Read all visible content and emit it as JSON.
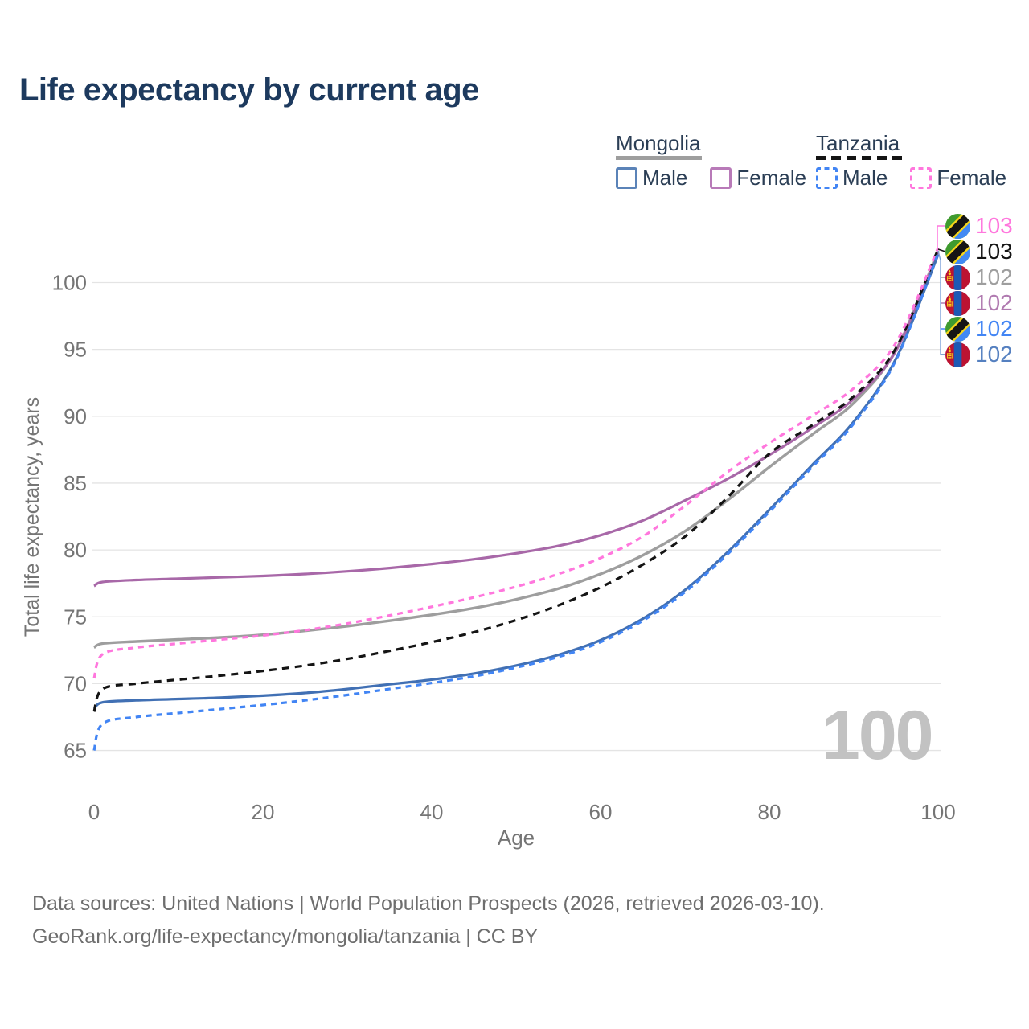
{
  "title": "Life expectancy by current age",
  "colors": {
    "title": "#1d3a5e",
    "axis": "#757575",
    "grid": "#e4e4e4",
    "legend_text": "#2b3e55",
    "watermark": "#c2c2c2",
    "leader_bracket": "#7ba0d8"
  },
  "legend": {
    "groups": [
      {
        "label": "Mongolia",
        "underline": "solid",
        "underline_color": "#9e9e9e",
        "items": [
          {
            "label": "Male",
            "color": "#5b83b8",
            "dashed": false
          },
          {
            "label": "Female",
            "color": "#b87ab8",
            "dashed": false
          }
        ]
      },
      {
        "label": "Tanzania",
        "underline": "dashed",
        "underline_color": "#141414",
        "items": [
          {
            "label": "Male",
            "color": "#4285f4",
            "dashed": true
          },
          {
            "label": "Female",
            "color": "#ff77dd",
            "dashed": true
          }
        ]
      }
    ]
  },
  "chart_data": {
    "type": "line",
    "title": "Life expectancy by current age",
    "xlabel": "Age",
    "ylabel": "Total life expectancy, years",
    "xlim": [
      0,
      100
    ],
    "ylim": [
      63.5,
      104
    ],
    "xticks": [
      0,
      20,
      40,
      60,
      80,
      100
    ],
    "yticks": [
      65,
      70,
      75,
      80,
      85,
      90,
      95,
      100
    ],
    "grid": "horizontal",
    "legend_position": "top-right",
    "watermark": "100",
    "x": [
      0,
      1,
      5,
      10,
      15,
      20,
      25,
      30,
      35,
      40,
      45,
      50,
      55,
      60,
      65,
      70,
      75,
      80,
      85,
      90,
      95,
      100
    ],
    "series": [
      {
        "name": "Mongolia",
        "country": "Mongolia",
        "sex": "Both",
        "color": "#9e9e9e",
        "dash": null,
        "width": 3.4,
        "values": [
          72.7,
          73.0,
          73.15,
          73.3,
          73.45,
          73.65,
          73.95,
          74.3,
          74.7,
          75.15,
          75.65,
          76.3,
          77.1,
          78.2,
          79.6,
          81.4,
          83.7,
          86.2,
          88.6,
          91.0,
          94.95,
          102.4
        ]
      },
      {
        "name": "Mongolia Female",
        "country": "Mongolia",
        "sex": "Female",
        "color": "#a868a8",
        "dash": null,
        "width": 3.2,
        "values": [
          77.3,
          77.6,
          77.75,
          77.85,
          77.95,
          78.05,
          78.2,
          78.4,
          78.65,
          78.95,
          79.3,
          79.75,
          80.3,
          81.1,
          82.2,
          83.7,
          85.3,
          87.1,
          89.1,
          91.3,
          94.9,
          102.3
        ]
      },
      {
        "name": "Mongolia Male",
        "country": "Mongolia",
        "sex": "Male",
        "color": "#4170b4",
        "dash": null,
        "width": 3.2,
        "values": [
          68.1,
          68.6,
          68.75,
          68.85,
          68.95,
          69.1,
          69.3,
          69.6,
          69.95,
          70.3,
          70.75,
          71.35,
          72.15,
          73.25,
          74.85,
          77.0,
          79.8,
          83.0,
          86.3,
          89.6,
          94.3,
          102.1
        ]
      },
      {
        "name": "Tanzania",
        "country": "Tanzania",
        "sex": "Both",
        "color": "#141414",
        "dash": [
          9,
          7
        ],
        "width": 3.2,
        "values": [
          67.9,
          69.6,
          70.0,
          70.3,
          70.6,
          70.95,
          71.35,
          71.85,
          72.45,
          73.1,
          73.85,
          74.75,
          75.85,
          77.2,
          78.9,
          81.0,
          83.9,
          87.2,
          89.3,
          91.5,
          95.1,
          102.5
        ]
      },
      {
        "name": "Tanzania Female",
        "country": "Tanzania",
        "sex": "Female",
        "color": "#ff77dd",
        "dash": [
          7,
          6
        ],
        "width": 3.2,
        "values": [
          70.4,
          72.2,
          72.7,
          73.0,
          73.3,
          73.6,
          74.0,
          74.5,
          75.1,
          75.75,
          76.45,
          77.25,
          78.2,
          79.4,
          81.0,
          83.3,
          85.8,
          88.0,
          90.0,
          92.1,
          95.5,
          102.6
        ]
      },
      {
        "name": "Tanzania Male",
        "country": "Tanzania",
        "sex": "Male",
        "color": "#4285f4",
        "dash": [
          7,
          6
        ],
        "width": 3.2,
        "values": [
          65.0,
          67.0,
          67.5,
          67.8,
          68.1,
          68.4,
          68.75,
          69.15,
          69.6,
          70.05,
          70.55,
          71.2,
          72.0,
          73.1,
          74.7,
          76.85,
          79.65,
          82.85,
          86.15,
          89.45,
          94.2,
          102.2
        ]
      }
    ],
    "end_labels": [
      {
        "series": "Tanzania Female",
        "flag": "tanzania",
        "value": "103",
        "color": "#ff77dd"
      },
      {
        "series": "Tanzania",
        "flag": "tanzania",
        "value": "103",
        "color": "#141414"
      },
      {
        "series": "Mongolia",
        "flag": "mongolia",
        "value": "102",
        "color": "#9e9e9e"
      },
      {
        "series": "Mongolia Female",
        "flag": "mongolia",
        "value": "102",
        "color": "#b07ab0"
      },
      {
        "series": "Tanzania Male",
        "flag": "tanzania",
        "value": "102",
        "color": "#4285f4"
      },
      {
        "series": "Mongolia Male",
        "flag": "mongolia",
        "value": "102",
        "color": "#5580c0"
      }
    ]
  },
  "footer": {
    "line1": "Data sources: United Nations | World Population Prospects (2026, retrieved 2026-03-10).",
    "line2": "GeoRank.org/life-expectancy/mongolia/tanzania | CC BY"
  }
}
